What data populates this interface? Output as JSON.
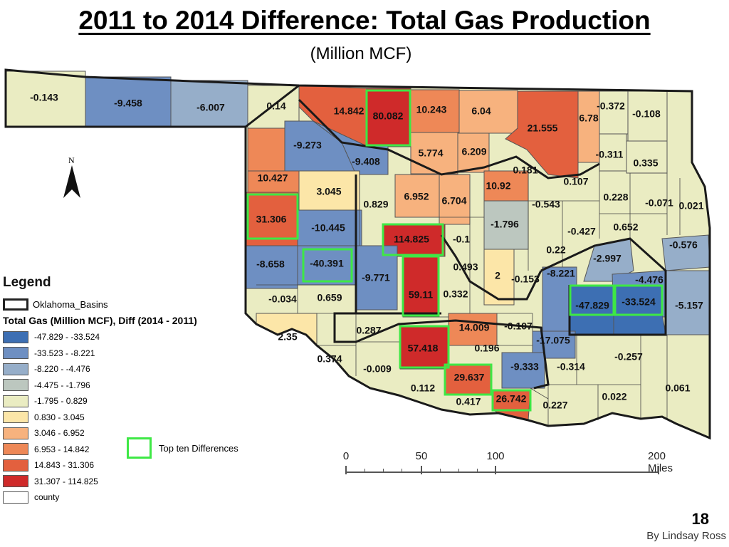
{
  "title": "2011 to 2014 Difference: Total Gas Production",
  "subtitle": "(Million MCF)",
  "north_label": "N",
  "legend": {
    "title": "Legend",
    "basin_label": "Oklahoma_Basins",
    "field_label": "Total Gas (Million MCF), Diff (2014 - 2011)",
    "classes": [
      {
        "label": "-47.829 - -33.524",
        "color": "#3d6fb3"
      },
      {
        "label": "-33.523 - -8.221",
        "color": "#6e8fc2"
      },
      {
        "label": "-8.220 - -4.476",
        "color": "#96aec9"
      },
      {
        "label": "-4.475 - -1.796",
        "color": "#bcc7bf"
      },
      {
        "label": "-1.795 - 0.829",
        "color": "#eaecc2"
      },
      {
        "label": "0.830 - 3.045",
        "color": "#fce6a8"
      },
      {
        "label": "3.046 - 6.952",
        "color": "#f7b27e"
      },
      {
        "label": "6.953 - 14.842",
        "color": "#ee8857"
      },
      {
        "label": "14.843 - 31.306",
        "color": "#e3603e"
      },
      {
        "label": "31.307 - 114.825",
        "color": "#cf2a2a"
      },
      {
        "label": "county",
        "color": "#ffffff"
      }
    ]
  },
  "top_ten_label": "Top ten Differences",
  "top_ten_color": "#3ee845",
  "scale": {
    "labels": [
      "0",
      "50",
      "100",
      "200  Miles"
    ]
  },
  "page_number": "18",
  "author": "By Lindsay Ross",
  "counties": [
    {
      "value": "-0.143"
    },
    {
      "value": "-9.458"
    },
    {
      "value": "-6.007"
    },
    {
      "value": "0.14"
    },
    {
      "value": "14.842"
    },
    {
      "value": "80.082"
    },
    {
      "value": "10.243"
    },
    {
      "value": "6.04"
    },
    {
      "value": "21.555"
    },
    {
      "value": "6.78"
    },
    {
      "value": "-0.372"
    },
    {
      "value": "-0.108"
    },
    {
      "value": "-9.273"
    },
    {
      "value": "-9.408"
    },
    {
      "value": "5.774"
    },
    {
      "value": "6.209"
    },
    {
      "value": "0.181"
    },
    {
      "value": "-0.311"
    },
    {
      "value": "0.335"
    },
    {
      "value": "10.427"
    },
    {
      "value": "3.045"
    },
    {
      "value": "0.829"
    },
    {
      "value": "6.952"
    },
    {
      "value": "6.704"
    },
    {
      "value": "10.92"
    },
    {
      "value": "0.107"
    },
    {
      "value": "-0.543"
    },
    {
      "value": "0.228"
    },
    {
      "value": "-0.071"
    },
    {
      "value": "0.021"
    },
    {
      "value": "31.306"
    },
    {
      "value": "-10.445"
    },
    {
      "value": "114.825"
    },
    {
      "value": "-0.1"
    },
    {
      "value": "-1.796"
    },
    {
      "value": "-0.427"
    },
    {
      "value": "0.652"
    },
    {
      "value": "-0.576"
    },
    {
      "value": "0.22"
    },
    {
      "value": "-2.997"
    },
    {
      "value": "-8.658"
    },
    {
      "value": "-40.391"
    },
    {
      "value": "-9.771"
    },
    {
      "value": "0.493"
    },
    {
      "value": "2"
    },
    {
      "value": "-0.153"
    },
    {
      "value": "-8.221"
    },
    {
      "value": "-4.476"
    },
    {
      "value": "59.11"
    },
    {
      "value": "0.332"
    },
    {
      "value": "-47.829"
    },
    {
      "value": "-33.524"
    },
    {
      "value": "-5.157"
    },
    {
      "value": "-0.034"
    },
    {
      "value": "0.659"
    },
    {
      "value": "0.287"
    },
    {
      "value": "14.009"
    },
    {
      "value": "-0.107"
    },
    {
      "value": "-17.075"
    },
    {
      "value": "2.35"
    },
    {
      "value": "0.374"
    },
    {
      "value": "-0.009"
    },
    {
      "value": "57.418"
    },
    {
      "value": "0.196"
    },
    {
      "value": "-0.257"
    },
    {
      "value": "-9.333"
    },
    {
      "value": "-0.314"
    },
    {
      "value": "0.112"
    },
    {
      "value": "29.637"
    },
    {
      "value": "0.061"
    },
    {
      "value": "0.417"
    },
    {
      "value": "26.742"
    },
    {
      "value": "0.227"
    },
    {
      "value": "0.022"
    }
  ]
}
